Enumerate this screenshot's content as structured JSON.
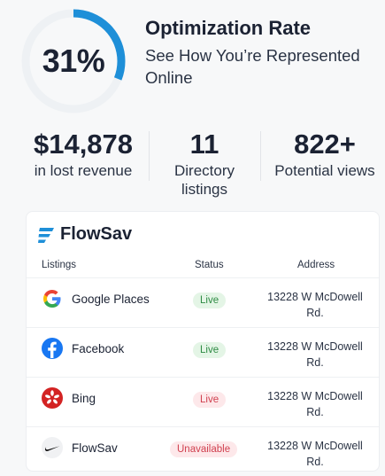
{
  "gauge": {
    "value_label": "31%",
    "value": 0.31,
    "track_color": "#eef1f4",
    "fill_color": "#1e8fd8"
  },
  "hero": {
    "title": "Optimization Rate",
    "subtitle": "See How You’re Represented Online"
  },
  "stats": [
    {
      "value": "$14,878",
      "label": "in lost revenue"
    },
    {
      "value": "11",
      "label": "Directory listings"
    },
    {
      "value": "822+",
      "label": "Potential views"
    }
  ],
  "card": {
    "brand": "FlowSav",
    "brand_color": "#1e8fd8",
    "columns": {
      "listings": "Listings",
      "status": "Status",
      "address": "Address"
    },
    "rows": [
      {
        "name": "Google Places",
        "icon": "google-icon",
        "status": "Live",
        "address": "13228 W McDowell Rd."
      },
      {
        "name": "Facebook",
        "icon": "facebook-icon",
        "status": "Live",
        "address": "13228 W McDowell Rd."
      },
      {
        "name": "Bing",
        "icon": "yelp-icon",
        "status": "Live",
        "address": "13228 W McDowell Rd."
      },
      {
        "name": "FlowSav",
        "icon": "nike-swoosh-icon",
        "status": "Unavailable",
        "address": "13228 W McDowell Rd."
      }
    ]
  }
}
